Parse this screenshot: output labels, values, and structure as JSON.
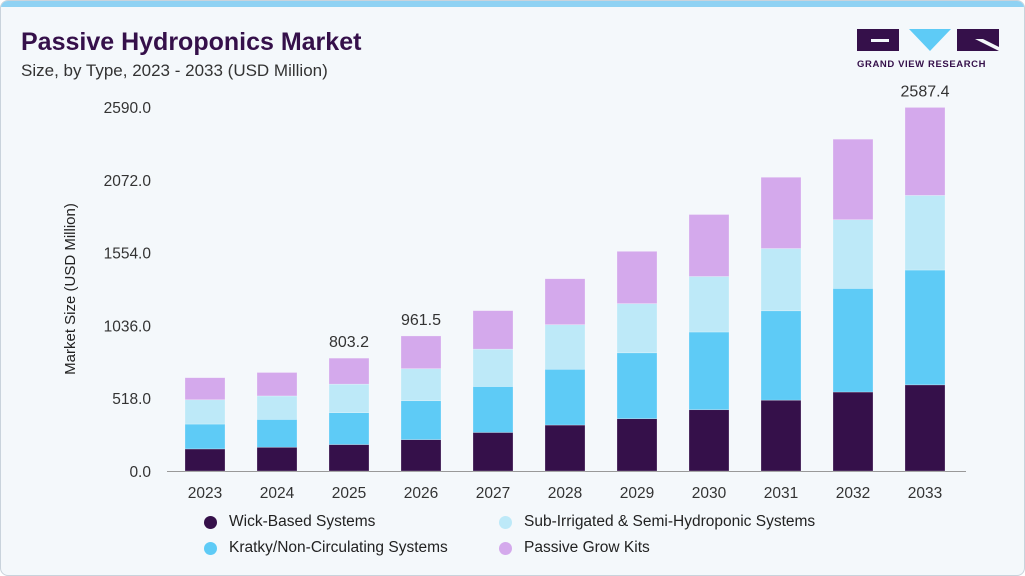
{
  "header": {
    "title": "Passive Hydroponics Market",
    "subtitle": "Size, by Type, 2023 - 2033 (USD Million)",
    "logo_text": "GRAND VIEW RESEARCH"
  },
  "colors": {
    "brand": "#35104a",
    "accent": "#8fd2f3"
  },
  "chart_data": {
    "type": "bar",
    "stacked": true,
    "title": "Passive Hydroponics Market",
    "subtitle": "Size, by Type, 2023 - 2033 (USD Million)",
    "xlabel": "",
    "ylabel": "Market Size (USD Million)",
    "ylim": [
      0,
      2590
    ],
    "yticks": [
      "0.0",
      "518.0",
      "1036.0",
      "1554.0",
      "2072.0",
      "2590.0"
    ],
    "grid": false,
    "legend_placement": "bottom",
    "categories": [
      "2023",
      "2024",
      "2025",
      "2026",
      "2027",
      "2028",
      "2029",
      "2030",
      "2031",
      "2032",
      "2033"
    ],
    "series": [
      {
        "name": "Wick-Based Systems",
        "color": "#35104a",
        "values": [
          157,
          169,
          188,
          223,
          274,
          327,
          372,
          436,
          504,
          562,
          613
        ]
      },
      {
        "name": "Kratky/Non-Circulating Systems",
        "color": "#5ecbf6",
        "values": [
          177,
          198,
          227,
          277,
          327,
          397,
          469,
          553,
          636,
          737,
          817
        ]
      },
      {
        "name": "Sub-Irrigated & Semi-Hydroponic Systems",
        "color": "#bde9f8",
        "values": [
          173,
          167,
          203,
          228,
          266,
          317,
          350,
          395,
          443,
          489,
          531
        ]
      },
      {
        "name": "Passive Grow Kits",
        "color": "#d4a9ec",
        "values": [
          157,
          167,
          185,
          233,
          274,
          327,
          372,
          441,
          507,
          573,
          626
        ]
      }
    ],
    "annotations": [
      {
        "category": "2025",
        "label": "803.2"
      },
      {
        "category": "2026",
        "label": "961.5"
      },
      {
        "category": "2033",
        "label": "2587.4"
      }
    ]
  }
}
